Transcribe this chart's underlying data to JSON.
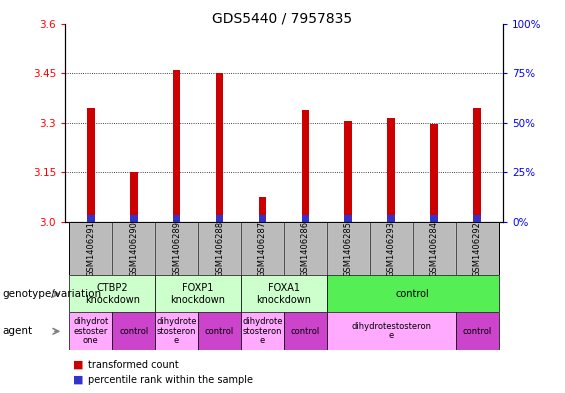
{
  "title": "GDS5440 / 7957835",
  "samples": [
    "GSM1406291",
    "GSM1406290",
    "GSM1406289",
    "GSM1406288",
    "GSM1406287",
    "GSM1406286",
    "GSM1406285",
    "GSM1406293",
    "GSM1406284",
    "GSM1406292"
  ],
  "transformed_count": [
    3.345,
    3.15,
    3.46,
    3.45,
    3.075,
    3.34,
    3.305,
    3.315,
    3.295,
    3.345
  ],
  "percentile_rank_bar_height": [
    0.022,
    0.022,
    0.022,
    0.022,
    0.022,
    0.022,
    0.022,
    0.022,
    0.022,
    0.022
  ],
  "ymin": 3.0,
  "ymax": 3.6,
  "y_ticks": [
    3.0,
    3.15,
    3.3,
    3.45,
    3.6
  ],
  "y2_ticks": [
    0,
    25,
    50,
    75,
    100
  ],
  "bar_width": 0.18,
  "red_color": "#cc0000",
  "blue_color": "#3333cc",
  "genotype_groups": [
    {
      "label": "CTBP2\nknockdown",
      "start": 0,
      "end": 2,
      "color": "#ccffcc"
    },
    {
      "label": "FOXP1\nknockdown",
      "start": 2,
      "end": 4,
      "color": "#ccffcc"
    },
    {
      "label": "FOXA1\nknockdown",
      "start": 4,
      "end": 6,
      "color": "#ccffcc"
    },
    {
      "label": "control",
      "start": 6,
      "end": 10,
      "color": "#55ee55"
    }
  ],
  "agent_groups": [
    {
      "label": "dihydrot\nestoster\none",
      "start": 0,
      "end": 1,
      "color": "#ffaaff"
    },
    {
      "label": "control",
      "start": 1,
      "end": 2,
      "color": "#cc44cc"
    },
    {
      "label": "dihydrote\nstosteron\ne",
      "start": 2,
      "end": 3,
      "color": "#ffaaff"
    },
    {
      "label": "control",
      "start": 3,
      "end": 4,
      "color": "#cc44cc"
    },
    {
      "label": "dihydrote\nstosteron\ne",
      "start": 4,
      "end": 5,
      "color": "#ffaaff"
    },
    {
      "label": "control",
      "start": 5,
      "end": 6,
      "color": "#cc44cc"
    },
    {
      "label": "dihydrotestosteron\ne",
      "start": 6,
      "end": 9,
      "color": "#ffaaff"
    },
    {
      "label": "control",
      "start": 9,
      "end": 10,
      "color": "#cc44cc"
    }
  ],
  "legend_items": [
    {
      "color": "#cc0000",
      "label": "transformed count"
    },
    {
      "color": "#3333cc",
      "label": "percentile rank within the sample"
    }
  ],
  "sample_bg_color": "#bbbbbb",
  "title_fontsize": 10,
  "tick_fontsize": 7.5,
  "label_fontsize": 7.5,
  "sample_fontsize": 6,
  "geno_fontsize": 7,
  "agent_fontsize": 6,
  "legend_fontsize": 7
}
